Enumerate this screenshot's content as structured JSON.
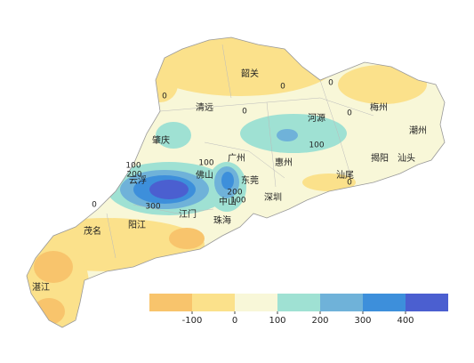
{
  "cities": [
    "韶关",
    "清远",
    "河源",
    "梅州",
    "潮州",
    "肇庆",
    "广州",
    "惠州",
    "揭阳",
    "汕头",
    "佛山",
    "云浮",
    "东莞",
    "汕尾",
    "深圳",
    "中山",
    "江门",
    "珠海",
    "阳江",
    "茂名",
    "湛江"
  ],
  "contour_labels": [
    0,
    0,
    0,
    0,
    0,
    100,
    100,
    200,
    300,
    100,
    200,
    100,
    0,
    0
  ],
  "legend": {
    "colors": [
      "#f8c46c",
      "#fbe18b",
      "#f8f7d8",
      "#9fe1d3",
      "#6fb2d9",
      "#3d8fdb",
      "#4b5fd0"
    ],
    "ticks": [
      -100,
      0,
      100,
      200,
      300,
      400
    ]
  }
}
